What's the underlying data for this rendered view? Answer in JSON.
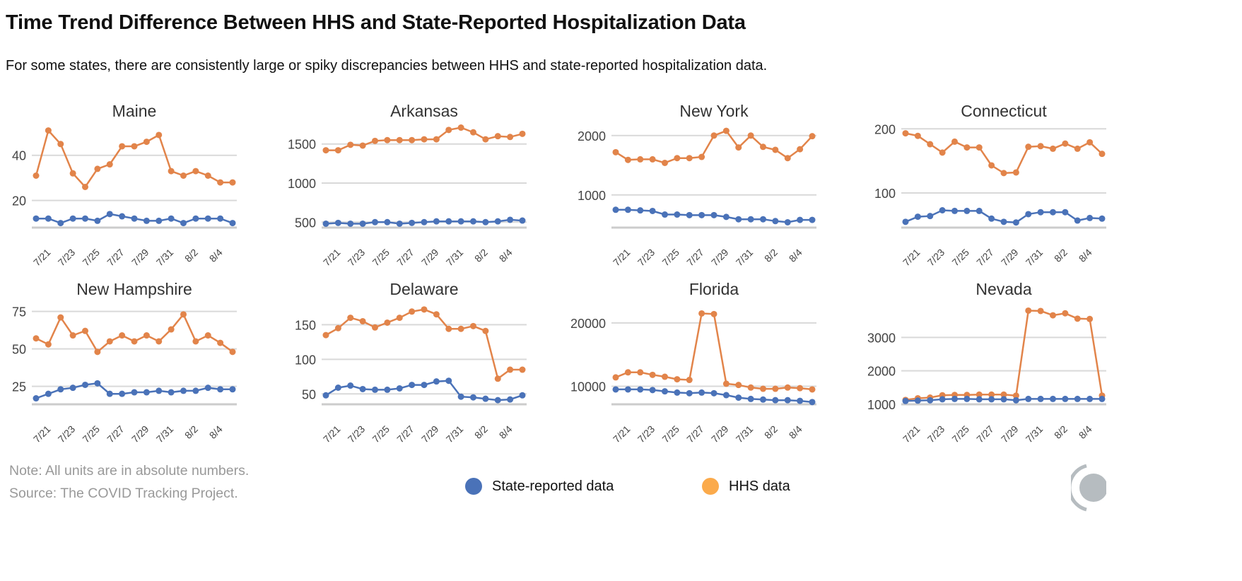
{
  "header": {
    "title": "Time Trend Difference Between HHS and State-Reported Hospitalization Data",
    "subtitle": "For some states, there are consistently large or spiky discrepancies between HHS and state-reported hospitalization data."
  },
  "footer": {
    "note": "Note: All units are in absolute numbers.",
    "source": "Source: The COVID Tracking Project."
  },
  "legend": [
    {
      "label": "State-reported data",
      "color": "#4a72b8"
    },
    {
      "label": "HHS data",
      "color": "#fbaa4b"
    }
  ],
  "colors": {
    "state": "#4a72b8",
    "hhs": "#e2844a",
    "grid": "#d9d9d9"
  },
  "chart_data": [
    {
      "type": "line",
      "title": "Maine",
      "ylim": [
        8,
        54
      ],
      "yticks": [
        20,
        40
      ],
      "grid": true,
      "x": [
        "7/20",
        "7/21",
        "7/22",
        "7/23",
        "7/24",
        "7/25",
        "7/26",
        "7/27",
        "7/28",
        "7/29",
        "7/30",
        "7/31",
        "8/1",
        "8/2",
        "8/3",
        "8/4",
        "8/5"
      ],
      "xtick_labels": [
        "7/21",
        "7/23",
        "7/25",
        "7/27",
        "7/29",
        "7/31",
        "8/2",
        "8/4"
      ],
      "series": [
        {
          "name": "HHS data",
          "values": [
            31,
            51,
            45,
            32,
            26,
            34,
            36,
            44,
            44,
            46,
            49,
            33,
            31,
            33,
            31,
            28,
            28
          ]
        },
        {
          "name": "State-reported data",
          "values": [
            12,
            12,
            10,
            12,
            12,
            11,
            14,
            13,
            12,
            11,
            11,
            12,
            10,
            12,
            12,
            12,
            10
          ]
        }
      ]
    },
    {
      "type": "line",
      "title": "Arkansas",
      "ylim": [
        430,
        1760
      ],
      "yticks": [
        500,
        1000,
        1500
      ],
      "grid": true,
      "x": [
        "7/20",
        "7/21",
        "7/22",
        "7/23",
        "7/24",
        "7/25",
        "7/26",
        "7/27",
        "7/28",
        "7/29",
        "7/30",
        "7/31",
        "8/1",
        "8/2",
        "8/3",
        "8/4",
        "8/5"
      ],
      "xtick_labels": [
        "7/21",
        "7/23",
        "7/25",
        "7/27",
        "7/29",
        "7/31",
        "8/2",
        "8/4"
      ],
      "series": [
        {
          "name": "HHS data",
          "values": [
            1420,
            1420,
            1490,
            1480,
            1540,
            1550,
            1550,
            1550,
            1560,
            1560,
            1680,
            1710,
            1650,
            1560,
            1600,
            1590,
            1630
          ]
        },
        {
          "name": "State-reported data",
          "values": [
            480,
            490,
            480,
            480,
            500,
            500,
            480,
            490,
            500,
            510,
            510,
            510,
            510,
            500,
            510,
            530,
            520
          ]
        }
      ]
    },
    {
      "type": "line",
      "title": "New York",
      "ylim": [
        450,
        2200
      ],
      "yticks": [
        1000,
        2000
      ],
      "grid": true,
      "x": [
        "7/20",
        "7/21",
        "7/22",
        "7/23",
        "7/24",
        "7/25",
        "7/26",
        "7/27",
        "7/28",
        "7/29",
        "7/30",
        "7/31",
        "8/1",
        "8/2",
        "8/3",
        "8/4",
        "8/5"
      ],
      "xtick_labels": [
        "7/21",
        "7/23",
        "7/25",
        "7/27",
        "7/29",
        "7/31",
        "8/2",
        "8/4"
      ],
      "series": [
        {
          "name": "HHS data",
          "values": [
            1720,
            1590,
            1600,
            1600,
            1540,
            1620,
            1620,
            1640,
            2000,
            2080,
            1800,
            2000,
            1810,
            1760,
            1620,
            1770,
            1990
          ]
        },
        {
          "name": "State-reported data",
          "values": [
            750,
            750,
            740,
            730,
            670,
            670,
            660,
            660,
            660,
            630,
            590,
            590,
            590,
            560,
            540,
            580,
            580
          ]
        }
      ]
    },
    {
      "type": "line",
      "title": "Connecticut",
      "ylim": [
        46,
        208
      ],
      "yticks": [
        100,
        200
      ],
      "grid": true,
      "x": [
        "7/20",
        "7/21",
        "7/22",
        "7/23",
        "7/24",
        "7/25",
        "7/26",
        "7/27",
        "7/28",
        "7/29",
        "7/30",
        "7/31",
        "8/1",
        "8/2",
        "8/3",
        "8/4",
        "8/5"
      ],
      "xtick_labels": [
        "7/21",
        "7/23",
        "7/25",
        "7/27",
        "7/29",
        "7/31",
        "8/2",
        "8/4"
      ],
      "series": [
        {
          "name": "HHS data",
          "values": [
            193,
            189,
            176,
            163,
            180,
            171,
            171,
            143,
            131,
            132,
            172,
            173,
            169,
            177,
            169,
            179,
            161
          ]
        },
        {
          "name": "State-reported data",
          "values": [
            55,
            63,
            64,
            73,
            72,
            72,
            72,
            60,
            55,
            54,
            67,
            70,
            70,
            70,
            57,
            61,
            60
          ]
        }
      ]
    },
    {
      "type": "line",
      "title": "New Hampshire",
      "ylim": [
        13,
        80
      ],
      "yticks": [
        25,
        50,
        75
      ],
      "grid": true,
      "x": [
        "7/20",
        "7/21",
        "7/22",
        "7/23",
        "7/24",
        "7/25",
        "7/26",
        "7/27",
        "7/28",
        "7/29",
        "7/30",
        "7/31",
        "8/1",
        "8/2",
        "8/3",
        "8/4",
        "8/5"
      ],
      "xtick_labels": [
        "7/21",
        "7/23",
        "7/25",
        "7/27",
        "7/29",
        "7/31",
        "8/2",
        "8/4"
      ],
      "series": [
        {
          "name": "HHS data",
          "values": [
            57,
            53,
            71,
            59,
            62,
            48,
            55,
            59,
            55,
            59,
            55,
            63,
            73,
            55,
            59,
            54,
            48
          ]
        },
        {
          "name": "State-reported data",
          "values": [
            17,
            20,
            23,
            24,
            26,
            27,
            20,
            20,
            21,
            21,
            22,
            21,
            22,
            22,
            24,
            23,
            23
          ]
        }
      ]
    },
    {
      "type": "line",
      "title": "Delaware",
      "ylim": [
        35,
        180
      ],
      "yticks": [
        50,
        100,
        150
      ],
      "grid": true,
      "x": [
        "7/20",
        "7/21",
        "7/22",
        "7/23",
        "7/24",
        "7/25",
        "7/26",
        "7/27",
        "7/28",
        "7/29",
        "7/30",
        "7/31",
        "8/1",
        "8/2",
        "8/3",
        "8/4",
        "8/5"
      ],
      "xtick_labels": [
        "7/21",
        "7/23",
        "7/25",
        "7/27",
        "7/29",
        "7/31",
        "8/2",
        "8/4"
      ],
      "series": [
        {
          "name": "HHS data",
          "values": [
            135,
            145,
            160,
            155,
            146,
            153,
            160,
            169,
            172,
            165,
            144,
            144,
            148,
            141,
            72,
            85,
            85
          ]
        },
        {
          "name": "State-reported data",
          "values": [
            48,
            59,
            62,
            57,
            56,
            56,
            58,
            63,
            63,
            68,
            69,
            46,
            45,
            43,
            41,
            42,
            48
          ]
        }
      ]
    },
    {
      "type": "line",
      "title": "Florida",
      "ylim": [
        7150,
        23000
      ],
      "yticks": [
        10000,
        20000
      ],
      "grid": true,
      "x": [
        "7/20",
        "7/21",
        "7/22",
        "7/23",
        "7/24",
        "7/25",
        "7/26",
        "7/27",
        "7/28",
        "7/29",
        "7/30",
        "7/31",
        "8/1",
        "8/2",
        "8/3",
        "8/4",
        "8/5"
      ],
      "xtick_labels": [
        "7/21",
        "7/23",
        "7/25",
        "7/27",
        "7/29",
        "7/31",
        "8/2",
        "8/4"
      ],
      "series": [
        {
          "name": "HHS data",
          "values": [
            11400,
            12200,
            12200,
            11800,
            11500,
            11100,
            11000,
            21500,
            21400,
            10400,
            10200,
            9800,
            9600,
            9600,
            9800,
            9700,
            9500
          ]
        },
        {
          "name": "State-reported data",
          "values": [
            9500,
            9500,
            9500,
            9400,
            9200,
            9000,
            8900,
            9000,
            8900,
            8600,
            8200,
            8000,
            7900,
            7800,
            7800,
            7700,
            7500
          ]
        }
      ]
    },
    {
      "type": "line",
      "title": "Nevada",
      "ylim": [
        1000,
        4000
      ],
      "yticks": [
        1000,
        2000,
        3000
      ],
      "grid": true,
      "x": [
        "7/20",
        "7/21",
        "7/22",
        "7/23",
        "7/24",
        "7/25",
        "7/26",
        "7/27",
        "7/28",
        "7/29",
        "7/30",
        "7/31",
        "8/1",
        "8/2",
        "8/3",
        "8/4",
        "8/5"
      ],
      "xtick_labels": [
        "7/21",
        "7/23",
        "7/25",
        "7/27",
        "7/29",
        "7/31",
        "8/2",
        "8/4"
      ],
      "series": [
        {
          "name": "HHS data",
          "values": [
            1130,
            1180,
            1200,
            1270,
            1280,
            1280,
            1290,
            1290,
            1290,
            1260,
            3800,
            3790,
            3660,
            3720,
            3560,
            3550,
            1260
          ]
        },
        {
          "name": "State-reported data",
          "values": [
            1100,
            1110,
            1120,
            1150,
            1160,
            1160,
            1150,
            1150,
            1150,
            1120,
            1160,
            1160,
            1160,
            1160,
            1160,
            1160,
            1160
          ]
        }
      ]
    }
  ]
}
